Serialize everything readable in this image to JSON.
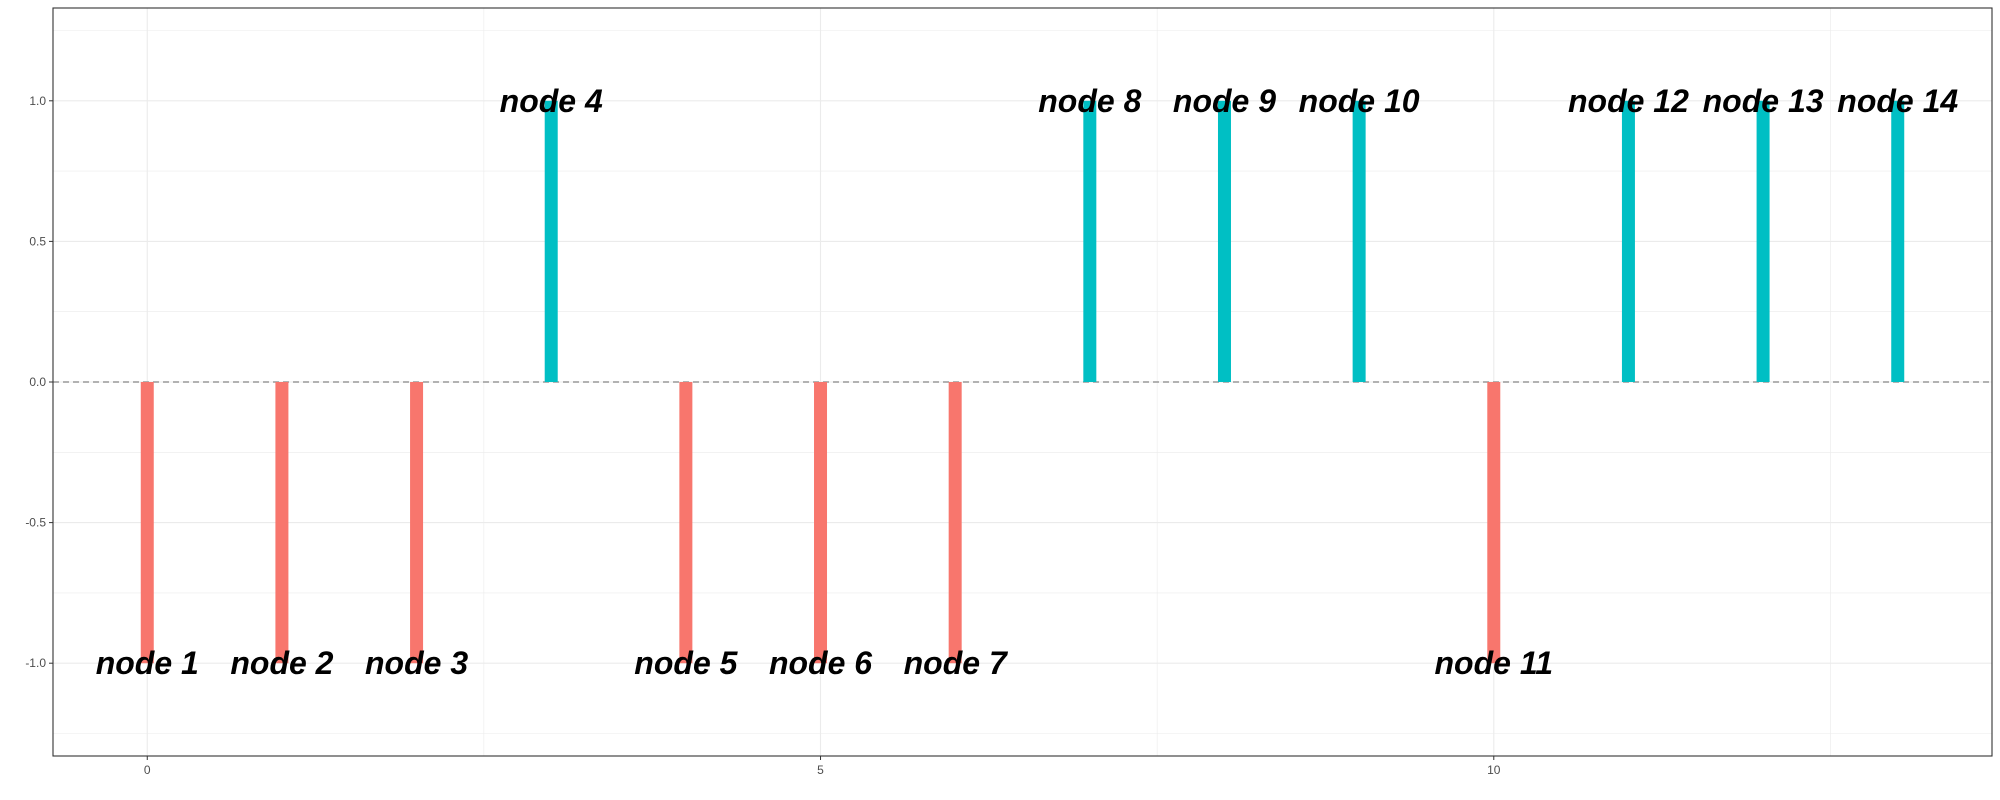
{
  "chart_data": {
    "type": "bar",
    "title": "",
    "xlabel": "",
    "ylabel": "",
    "x": [
      0,
      1,
      2,
      3,
      4,
      5,
      6,
      7,
      8,
      9,
      10,
      11,
      12,
      13
    ],
    "values": [
      -1,
      -1,
      -1,
      1,
      -1,
      -1,
      -1,
      1,
      1,
      1,
      -1,
      1,
      1,
      1
    ],
    "labels": [
      "node 1",
      "node 2",
      "node 3",
      "node 4",
      "node 5",
      "node 6",
      "node 7",
      "node 8",
      "node 9",
      "node 10",
      "node 11",
      "node 12",
      "node 13",
      "node 14"
    ],
    "colors": {
      "negative": "#F8766D",
      "positive": "#00BFC4",
      "reference_line": "#999999",
      "grid": "#ebebeb",
      "panel_border": "#333333"
    },
    "reference_line_y": 0,
    "xlim": [
      -0.7,
      13.7
    ],
    "ylim": [
      -1.33,
      1.33
    ],
    "x_ticks": [
      0,
      5,
      10
    ],
    "x_tick_labels": [
      "0",
      "5",
      "10"
    ],
    "y_ticks": [
      -1,
      -0.5,
      0,
      0.5,
      1
    ],
    "y_tick_labels": [
      "-1.0",
      "-0.5",
      "0.0",
      "0.5",
      "1.0"
    ],
    "grid": true,
    "legend": "none"
  }
}
